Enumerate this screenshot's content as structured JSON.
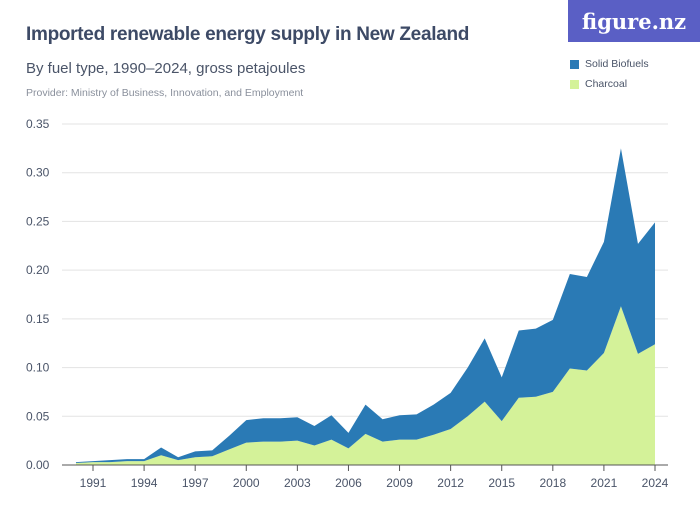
{
  "header": {
    "title": "Imported renewable energy supply in New Zealand",
    "subtitle": "By fuel type, 1990–2024, gross petajoules",
    "provider": "Provider: Ministry of Business, Innovation, and Employment",
    "logo": "figure.nz"
  },
  "chart_data": {
    "type": "area",
    "stacked": true,
    "x": [
      1990,
      1991,
      1992,
      1993,
      1994,
      1995,
      1996,
      1997,
      1998,
      1999,
      2000,
      2001,
      2002,
      2003,
      2004,
      2005,
      2006,
      2007,
      2008,
      2009,
      2010,
      2011,
      2012,
      2013,
      2014,
      2015,
      2016,
      2017,
      2018,
      2019,
      2020,
      2021,
      2022,
      2023,
      2024
    ],
    "x_ticks": [
      "1991",
      "1994",
      "1997",
      "2000",
      "2003",
      "2006",
      "2009",
      "2012",
      "2015",
      "2018",
      "2021",
      "2024"
    ],
    "y_ticks": [
      "0.00",
      "0.05",
      "0.10",
      "0.15",
      "0.20",
      "0.25",
      "0.30",
      "0.35"
    ],
    "ylim": [
      0,
      0.35
    ],
    "grid": true,
    "legend_position": "top-right",
    "series": [
      {
        "name": "Charcoal",
        "color": "#d4f299",
        "values": [
          0.002,
          0.003,
          0.003,
          0.004,
          0.004,
          0.01,
          0.005,
          0.008,
          0.009,
          0.016,
          0.023,
          0.024,
          0.024,
          0.025,
          0.02,
          0.026,
          0.017,
          0.032,
          0.024,
          0.026,
          0.026,
          0.031,
          0.037,
          0.05,
          0.065,
          0.045,
          0.069,
          0.07,
          0.075,
          0.099,
          0.097,
          0.115,
          0.163,
          0.114,
          0.124
        ]
      },
      {
        "name": "Solid Biofuels",
        "color": "#2a7ab5",
        "values": [
          0.001,
          0.001,
          0.002,
          0.002,
          0.002,
          0.008,
          0.003,
          0.006,
          0.006,
          0.014,
          0.023,
          0.024,
          0.024,
          0.024,
          0.02,
          0.025,
          0.016,
          0.03,
          0.023,
          0.025,
          0.026,
          0.031,
          0.037,
          0.05,
          0.065,
          0.045,
          0.069,
          0.07,
          0.074,
          0.097,
          0.096,
          0.114,
          0.162,
          0.113,
          0.125
        ]
      }
    ]
  }
}
